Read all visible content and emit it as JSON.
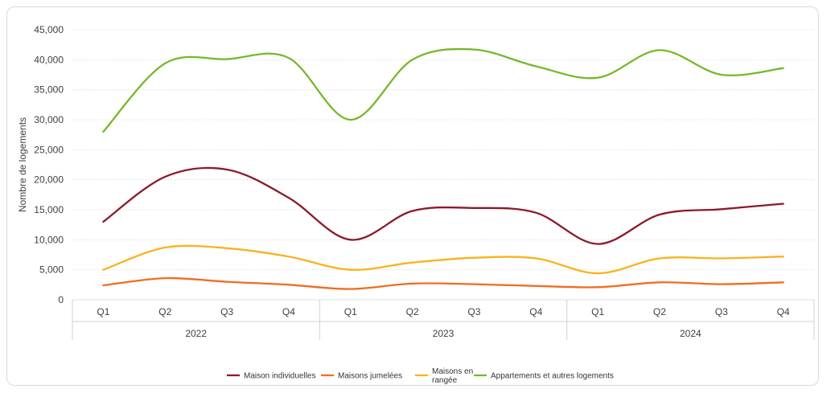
{
  "chart_data": {
    "type": "line",
    "ylabel": "Nombre de logements",
    "ylim": [
      0,
      45000
    ],
    "yticks": [
      "0",
      "5,000",
      "10,000",
      "15,000",
      "20,000",
      "25,000",
      "30,000",
      "35,000",
      "40,000",
      "45,000"
    ],
    "categories": [
      "Q1",
      "Q2",
      "Q3",
      "Q4",
      "Q1",
      "Q2",
      "Q3",
      "Q4",
      "Q1",
      "Q2",
      "Q3",
      "Q4"
    ],
    "groups": [
      "2022",
      "2023",
      "2024"
    ],
    "grid": "horizontal",
    "legend_position": "bottom",
    "series": [
      {
        "name": "Maison individuelles",
        "color": "#8b1a2b",
        "values": [
          13000,
          20500,
          21700,
          17000,
          10000,
          14800,
          15300,
          14500,
          9300,
          14200,
          15100,
          16000
        ]
      },
      {
        "name": "Maisons jumelées",
        "color": "#f26c21",
        "values": [
          2400,
          3600,
          3000,
          2500,
          1800,
          2700,
          2600,
          2300,
          2100,
          2900,
          2600,
          2900
        ]
      },
      {
        "name": "Maisons en rangée",
        "color": "#fbb11c",
        "values": [
          5000,
          8700,
          8600,
          7200,
          5000,
          6200,
          7000,
          6900,
          4400,
          6900,
          6900,
          7200
        ]
      },
      {
        "name": "Appartements et autres logements",
        "color": "#76b82a",
        "values": [
          28000,
          39400,
          40100,
          40300,
          30000,
          40000,
          41700,
          38900,
          37000,
          41600,
          37500,
          38600
        ]
      }
    ]
  }
}
